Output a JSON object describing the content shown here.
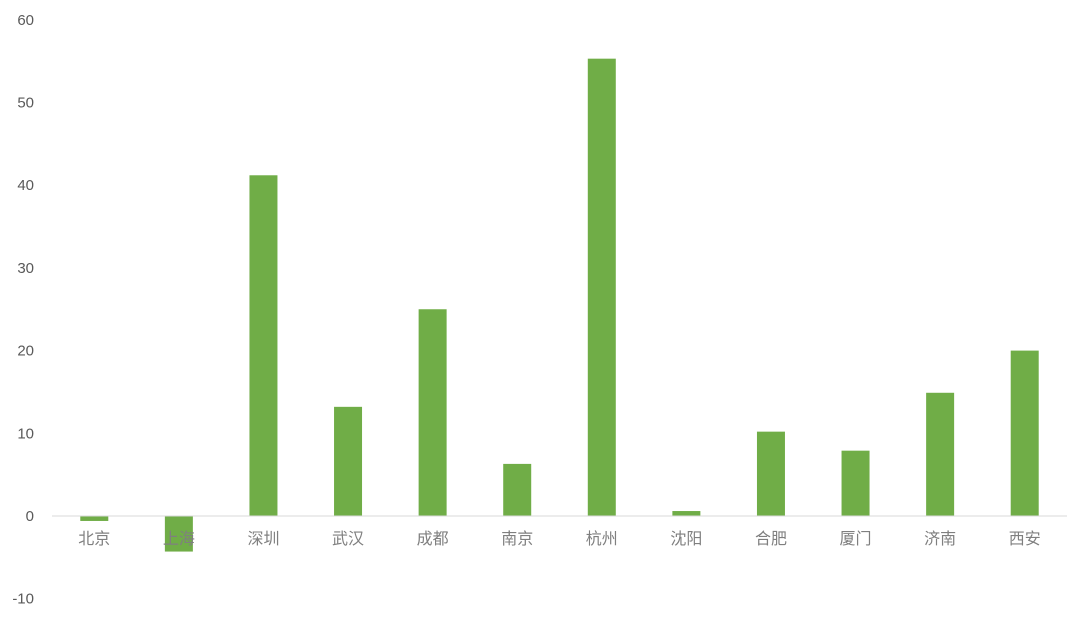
{
  "chart_data": {
    "type": "bar",
    "title": "",
    "xlabel": "",
    "ylabel": "",
    "categories": [
      "北京",
      "上海",
      "深圳",
      "武汉",
      "成都",
      "南京",
      "杭州",
      "沈阳",
      "合肥",
      "厦门",
      "济南",
      "西安"
    ],
    "values": [
      -0.6,
      -4.3,
      41.2,
      13.2,
      25.0,
      6.3,
      55.3,
      0.6,
      10.2,
      7.9,
      14.9,
      20.0
    ],
    "ylim": [
      -10,
      60
    ],
    "yticks": [
      "-10",
      "0",
      "10",
      "20",
      "30",
      "40",
      "50",
      "60"
    ],
    "grid": false,
    "legend": "none",
    "bar_color": "#70ad47",
    "axis_color": "#d9d9d9"
  }
}
